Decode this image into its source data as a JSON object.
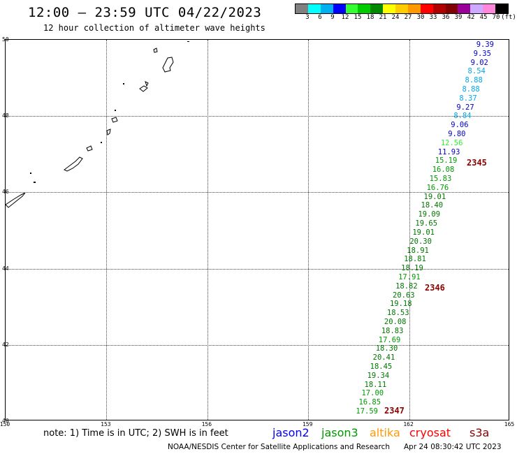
{
  "header": {
    "title": "12:00 — 23:59 UTC 04/22/2023",
    "subtitle": "12 hour collection of altimeter wave heights"
  },
  "scale": {
    "colors": [
      "#808080",
      "#00ffff",
      "#00b0f0",
      "#0000ff",
      "#33ff33",
      "#00cc00",
      "#008800",
      "#ffff00",
      "#ffcc00",
      "#ff9900",
      "#ff0000",
      "#b00000",
      "#800000",
      "#990099",
      "#ccaaff",
      "#ff88dd",
      "#000000"
    ],
    "labels": [
      "3",
      "6",
      "9",
      "12",
      "15",
      "18",
      "21",
      "24",
      "27",
      "30",
      "33",
      "36",
      "39",
      "42",
      "45",
      "70",
      "(ft)"
    ]
  },
  "axes": {
    "lat_labels": [
      "50",
      "48",
      "46",
      "44",
      "42",
      "40"
    ],
    "lon_labels": [
      "150",
      "153",
      "156",
      "159",
      "162",
      "165"
    ],
    "lat_range": [
      40,
      50
    ],
    "lon_range": [
      150,
      165
    ],
    "grid": true
  },
  "observations": [
    {
      "v": "9.39",
      "c": "#0000cc"
    },
    {
      "v": "9.35",
      "c": "#0000cc"
    },
    {
      "v": "9.02",
      "c": "#0000cc"
    },
    {
      "v": "8.54",
      "c": "#00a8e8"
    },
    {
      "v": "8.88",
      "c": "#00a8e8"
    },
    {
      "v": "8.88",
      "c": "#00a8e8"
    },
    {
      "v": "8.37",
      "c": "#00a8e8"
    },
    {
      "v": "9.27",
      "c": "#0000cc"
    },
    {
      "v": "8.84",
      "c": "#00a8e8"
    },
    {
      "v": "9.06",
      "c": "#0000cc"
    },
    {
      "v": "9.80",
      "c": "#0000cc"
    },
    {
      "v": "12.56",
      "c": "#33ee33"
    },
    {
      "v": "11.93",
      "c": "#0000cc"
    },
    {
      "v": "15.19",
      "c": "#009900"
    },
    {
      "v": "16.08",
      "c": "#009900"
    },
    {
      "v": "15.83",
      "c": "#009900"
    },
    {
      "v": "16.76",
      "c": "#009900"
    },
    {
      "v": "19.01",
      "c": "#007700"
    },
    {
      "v": "18.40",
      "c": "#007700"
    },
    {
      "v": "19.09",
      "c": "#007700"
    },
    {
      "v": "19.65",
      "c": "#007700"
    },
    {
      "v": "19.01",
      "c": "#007700"
    },
    {
      "v": "20.30",
      "c": "#007700"
    },
    {
      "v": "18.91",
      "c": "#007700"
    },
    {
      "v": "18.81",
      "c": "#007700"
    },
    {
      "v": "18.19",
      "c": "#007700"
    },
    {
      "v": "17.91",
      "c": "#009900"
    },
    {
      "v": "18.82",
      "c": "#007700"
    },
    {
      "v": "20.63",
      "c": "#007700"
    },
    {
      "v": "19.18",
      "c": "#007700"
    },
    {
      "v": "18.53",
      "c": "#007700"
    },
    {
      "v": "20.08",
      "c": "#007700"
    },
    {
      "v": "18.83",
      "c": "#007700"
    },
    {
      "v": "17.69",
      "c": "#009900"
    },
    {
      "v": "18.30",
      "c": "#007700"
    },
    {
      "v": "20.41",
      "c": "#007700"
    },
    {
      "v": "18.45",
      "c": "#007700"
    },
    {
      "v": "19.34",
      "c": "#007700"
    },
    {
      "v": "18.11",
      "c": "#007700"
    },
    {
      "v": "17.00",
      "c": "#009900"
    },
    {
      "v": "16.85",
      "c": "#009900"
    },
    {
      "v": "17.59",
      "c": "#009900"
    }
  ],
  "time_labels": [
    "2345",
    "2346",
    "2347"
  ],
  "legend": {
    "note": "note: 1) Time is in UTC; 2) SWH is in feet",
    "satellites": [
      {
        "name": "jason2",
        "color": "#0000ff"
      },
      {
        "name": "jason3",
        "color": "#009900"
      },
      {
        "name": "altika",
        "color": "#ff9900"
      },
      {
        "name": "cryosat",
        "color": "#ff0000"
      },
      {
        "name": "s3a",
        "color": "#8b0000"
      }
    ]
  },
  "footer": {
    "org": "NOAA/NESDIS Center for Satellite Applications and Research",
    "timestamp": "Apr 24 08:30:42 UTC 2023"
  }
}
